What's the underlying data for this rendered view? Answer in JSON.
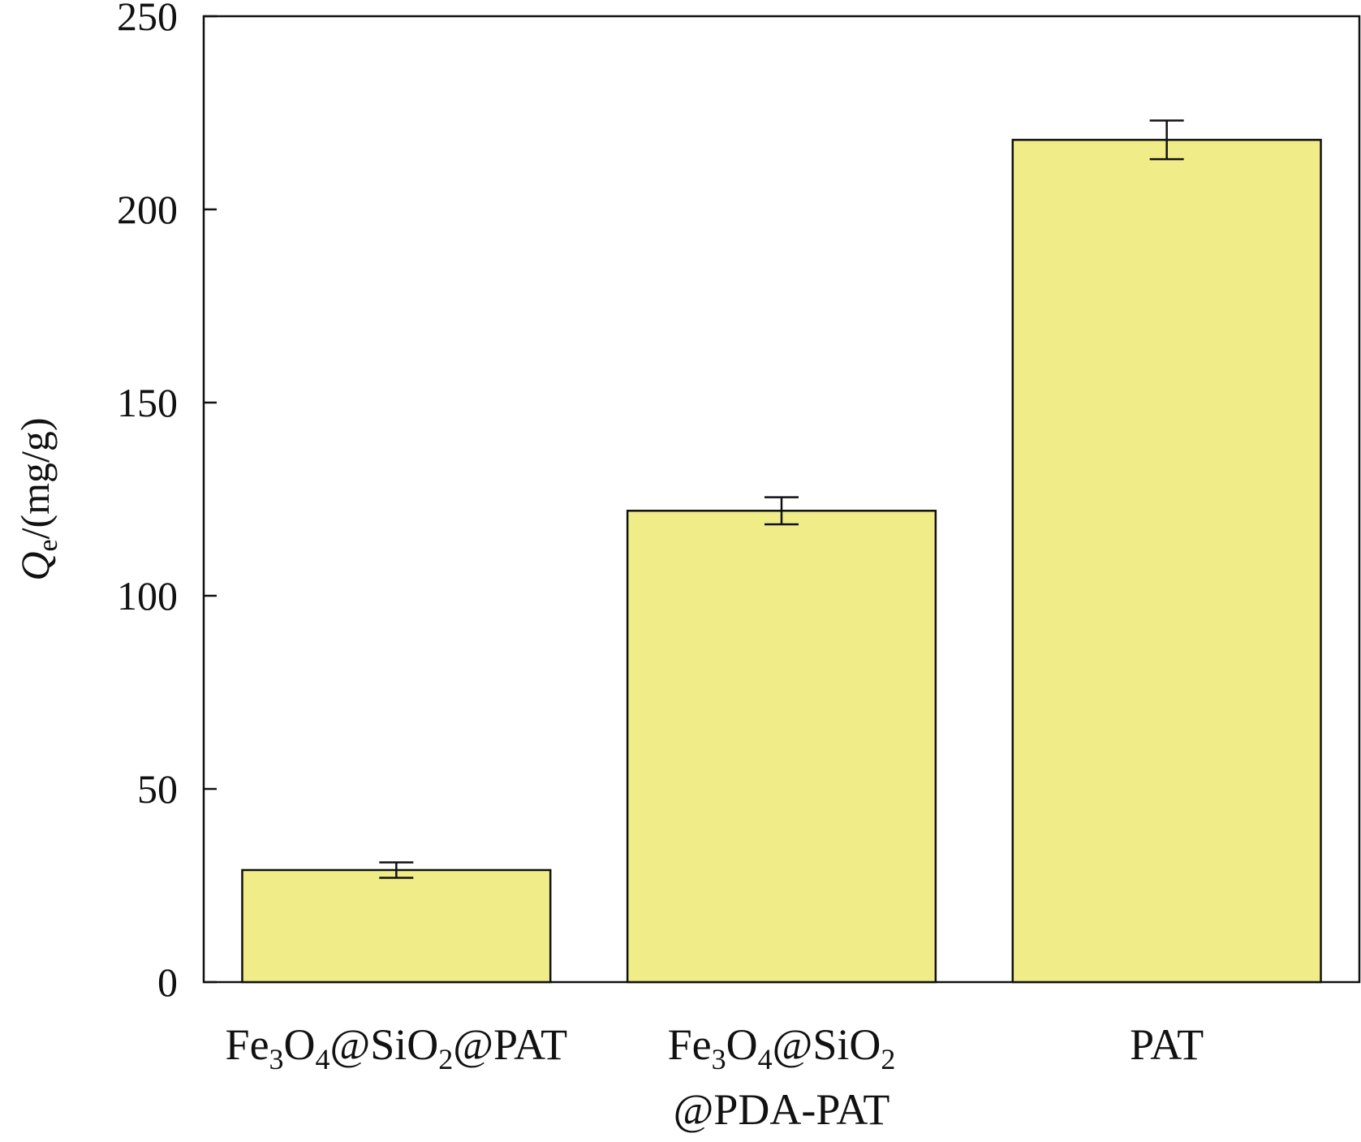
{
  "chart_data": {
    "type": "bar",
    "title": "",
    "xlabel": "",
    "ylabel": {
      "symbol": "Q",
      "subscript": "e",
      "unit": "/(mg/g)"
    },
    "ylim": [
      0,
      250
    ],
    "yticks": [
      0,
      50,
      100,
      150,
      200,
      250
    ],
    "grid": false,
    "legend": "none",
    "categories": [
      {
        "lines": [
          [
            {
              "t": "Fe"
            },
            {
              "t": "3",
              "sub": true
            },
            {
              "t": "O"
            },
            {
              "t": "4",
              "sub": true
            },
            {
              "t": "@SiO"
            },
            {
              "t": "2",
              "sub": true
            },
            {
              "t": "@PAT"
            }
          ]
        ]
      },
      {
        "lines": [
          [
            {
              "t": "Fe"
            },
            {
              "t": "3",
              "sub": true
            },
            {
              "t": "O"
            },
            {
              "t": "4",
              "sub": true
            },
            {
              "t": "@SiO"
            },
            {
              "t": "2",
              "sub": true
            }
          ],
          [
            {
              "t": "@PDA-PAT"
            }
          ]
        ]
      },
      {
        "lines": [
          [
            {
              "t": "PAT"
            }
          ]
        ]
      }
    ],
    "values": [
      29,
      122,
      218
    ],
    "errors": [
      2,
      3.5,
      5
    ],
    "colors": {
      "bar_fill": "#f0ec88",
      "bar_stroke": "#111111",
      "axis": "#111111"
    }
  }
}
